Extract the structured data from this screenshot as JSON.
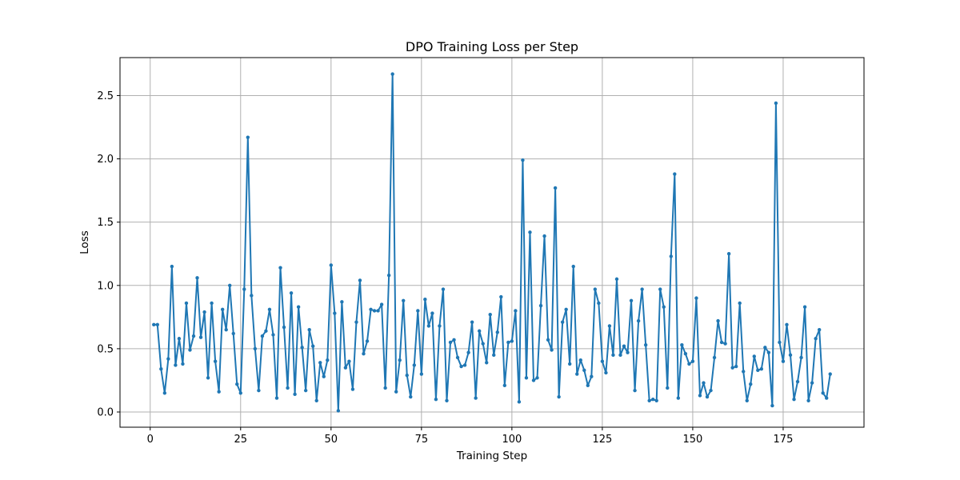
{
  "chart_data": {
    "type": "line",
    "title": "DPO Training Loss per Step",
    "xlabel": "Training Step",
    "ylabel": "Loss",
    "xlim": [
      -8.35,
      197.35
    ],
    "ylim": [
      -0.12,
      2.8
    ],
    "x_ticks": [
      0,
      25,
      50,
      75,
      100,
      125,
      150,
      175
    ],
    "x_tick_labels": [
      "0",
      "25",
      "50",
      "75",
      "100",
      "125",
      "150",
      "175"
    ],
    "y_ticks": [
      0.0,
      0.5,
      1.0,
      1.5,
      2.0,
      2.5
    ],
    "y_tick_labels": [
      "0.0",
      "0.5",
      "1.0",
      "1.5",
      "2.0",
      "2.5"
    ],
    "grid": true,
    "color": "#1f77b4",
    "marker": "circle",
    "x_start": 1,
    "y": [
      0.69,
      0.69,
      0.34,
      0.15,
      0.42,
      1.15,
      0.37,
      0.58,
      0.38,
      0.86,
      0.49,
      0.6,
      1.06,
      0.59,
      0.79,
      0.27,
      0.86,
      0.4,
      0.16,
      0.81,
      0.65,
      1.0,
      0.62,
      0.22,
      0.15,
      0.97,
      2.17,
      0.92,
      0.5,
      0.17,
      0.6,
      0.64,
      0.81,
      0.61,
      0.11,
      1.14,
      0.67,
      0.19,
      0.94,
      0.14,
      0.83,
      0.51,
      0.17,
      0.65,
      0.52,
      0.09,
      0.39,
      0.28,
      0.41,
      1.16,
      0.78,
      0.01,
      0.87,
      0.35,
      0.4,
      0.18,
      0.71,
      1.04,
      0.46,
      0.56,
      0.81,
      0.8,
      0.8,
      0.85,
      0.19,
      1.08,
      2.67,
      0.16,
      0.41,
      0.88,
      0.29,
      0.12,
      0.37,
      0.8,
      0.3,
      0.89,
      0.68,
      0.78,
      0.1,
      0.68,
      0.97,
      0.09,
      0.55,
      0.57,
      0.43,
      0.36,
      0.37,
      0.47,
      0.71,
      0.11,
      0.64,
      0.54,
      0.39,
      0.77,
      0.45,
      0.63,
      0.91,
      0.21,
      0.55,
      0.56,
      0.8,
      0.08,
      1.99,
      0.27,
      1.42,
      0.25,
      0.27,
      0.84,
      1.39,
      0.57,
      0.49,
      1.77,
      0.12,
      0.71,
      0.81,
      0.38,
      1.15,
      0.3,
      0.41,
      0.33,
      0.21,
      0.28,
      0.97,
      0.86,
      0.4,
      0.31,
      0.68,
      0.45,
      1.05,
      0.45,
      0.52,
      0.47,
      0.88,
      0.17,
      0.72,
      0.97,
      0.53,
      0.09,
      0.1,
      0.09,
      0.97,
      0.83,
      0.19,
      1.23,
      1.88,
      0.11,
      0.53,
      0.46,
      0.38,
      0.4,
      0.9,
      0.13,
      0.23,
      0.12,
      0.17,
      0.43,
      0.72,
      0.55,
      0.54,
      1.25,
      0.35,
      0.36,
      0.86,
      0.32,
      0.09,
      0.22,
      0.44,
      0.33,
      0.34,
      0.51,
      0.47,
      0.05,
      2.44,
      0.55,
      0.4,
      0.69,
      0.45,
      0.1,
      0.24,
      0.43,
      0.83,
      0.09,
      0.23,
      0.58,
      0.65,
      0.15,
      0.11,
      0.3
    ]
  }
}
